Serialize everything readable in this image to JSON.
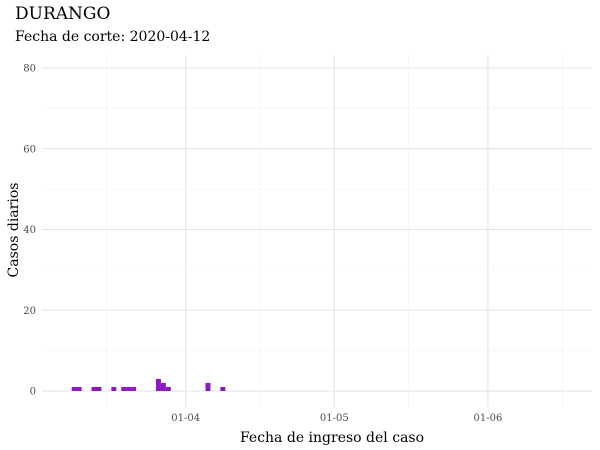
{
  "chart_data": {
    "type": "bar",
    "title": "DURANGO",
    "subtitle": "Fecha de corte: 2020-04-12",
    "xlabel": "Fecha de ingreso del caso",
    "ylabel": "Casos diarios",
    "ylim": [
      0,
      82
    ],
    "yticks": [
      0,
      20,
      40,
      60,
      80
    ],
    "xlim": [
      "2020-03-03",
      "2020-06-22"
    ],
    "xticks": [
      {
        "date": "2020-04-01",
        "label": "01-04"
      },
      {
        "date": "2020-05-01",
        "label": "01-05"
      },
      {
        "date": "2020-06-01",
        "label": "01-06"
      }
    ],
    "x_minor_dates": [
      "2020-03-16",
      "2020-04-16",
      "2020-05-16",
      "2020-06-16"
    ],
    "bar_color": "#8a19c2",
    "grid": true,
    "points": [
      {
        "date": "2020-03-09",
        "value": 1
      },
      {
        "date": "2020-03-10",
        "value": 1
      },
      {
        "date": "2020-03-13",
        "value": 1
      },
      {
        "date": "2020-03-14",
        "value": 1
      },
      {
        "date": "2020-03-17",
        "value": 1
      },
      {
        "date": "2020-03-19",
        "value": 1
      },
      {
        "date": "2020-03-20",
        "value": 1
      },
      {
        "date": "2020-03-21",
        "value": 1
      },
      {
        "date": "2020-03-26",
        "value": 3
      },
      {
        "date": "2020-03-27",
        "value": 2
      },
      {
        "date": "2020-03-28",
        "value": 1
      },
      {
        "date": "2020-04-05",
        "value": 2
      },
      {
        "date": "2020-04-08",
        "value": 1
      }
    ]
  }
}
